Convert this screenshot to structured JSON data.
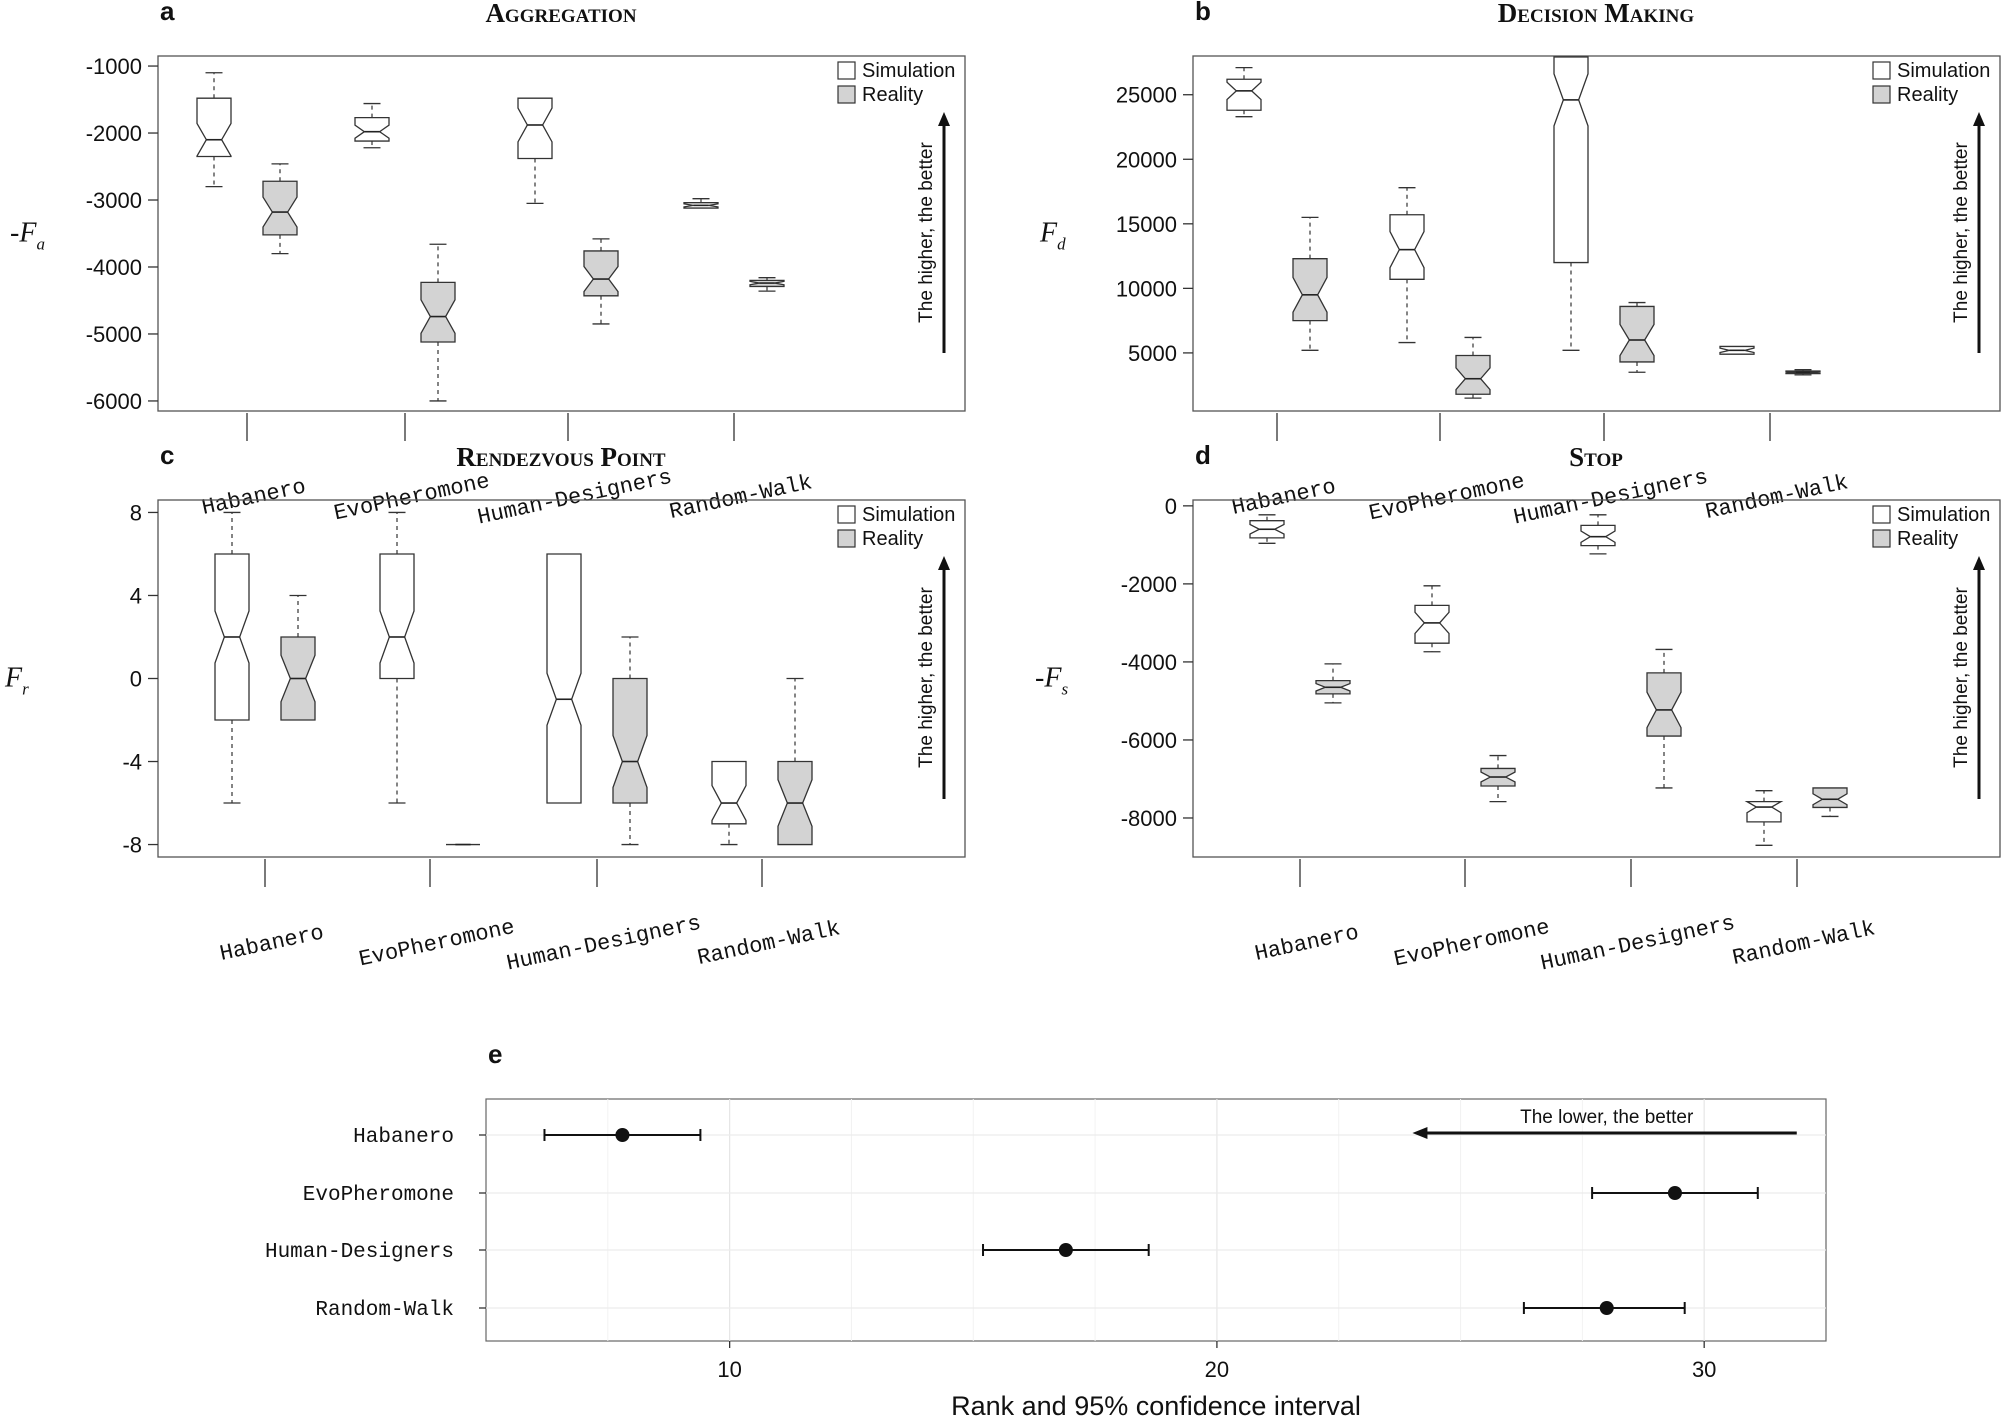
{
  "chart_data": [
    {
      "id": "a",
      "panel_label": "a",
      "type": "boxplot",
      "title": "Aggregation",
      "ylabel_prefix": "-",
      "ylabel_main": "F",
      "ylabel_sub": "a",
      "ylim": [
        -6150,
        -850
      ],
      "yticks": [
        -1000,
        -2000,
        -3000,
        -4000,
        -5000,
        -6000
      ],
      "ytick_labels": [
        "-1000",
        "-2000",
        "-3000",
        "-4000",
        "-5000",
        "-6000"
      ],
      "legend": [
        "Simulation",
        "Reality"
      ],
      "note": "The higher, the better",
      "categories": [
        "Habanero",
        "EvoPheromone",
        "Human-Designers",
        "Random-Walk"
      ],
      "boxes": [
        {
          "category": "Habanero",
          "series": "Simulation",
          "min": -2800,
          "q1": -2350,
          "median": -2100,
          "q3": -1480,
          "max": -1100
        },
        {
          "category": "Habanero",
          "series": "Reality",
          "min": -3800,
          "q1": -3520,
          "median": -3180,
          "q3": -2720,
          "max": -2460
        },
        {
          "category": "EvoPheromone",
          "series": "Simulation",
          "min": -2220,
          "q1": -2120,
          "median": -1980,
          "q3": -1770,
          "max": -1560
        },
        {
          "category": "EvoPheromone",
          "series": "Reality",
          "min": -6000,
          "q1": -5120,
          "median": -4740,
          "q3": -4230,
          "max": -3660
        },
        {
          "category": "Human-Designers",
          "series": "Simulation",
          "min": -3050,
          "q1": -2380,
          "median": -1880,
          "q3": -1480,
          "max": -1480
        },
        {
          "category": "Human-Designers",
          "series": "Reality",
          "min": -4850,
          "q1": -4430,
          "median": -4180,
          "q3": -3760,
          "max": -3580
        },
        {
          "category": "Random-Walk",
          "series": "Simulation",
          "min": -3120,
          "q1": -3120,
          "median": -3080,
          "q3": -3040,
          "max": -2980
        },
        {
          "category": "Random-Walk",
          "series": "Reality",
          "min": -4360,
          "q1": -4290,
          "median": -4240,
          "q3": -4200,
          "max": -4160
        }
      ]
    },
    {
      "id": "b",
      "panel_label": "b",
      "type": "boxplot",
      "title": "Decision Making",
      "ylabel_prefix": "",
      "ylabel_main": "F",
      "ylabel_sub": "d",
      "ylim": [
        500,
        28000
      ],
      "yticks": [
        5000,
        10000,
        15000,
        20000,
        25000
      ],
      "ytick_labels": [
        "5000",
        "10000",
        "15000",
        "20000",
        "25000"
      ],
      "legend": [
        "Simulation",
        "Reality"
      ],
      "note": "The higher, the better",
      "categories": [
        "Habanero",
        "EvoPheromone",
        "Human-Designers",
        "Random-Walk"
      ],
      "boxes": [
        {
          "category": "Habanero",
          "series": "Simulation",
          "min": 23300,
          "q1": 23800,
          "median": 25300,
          "q3": 26200,
          "max": 27100
        },
        {
          "category": "Habanero",
          "series": "Reality",
          "min": 5200,
          "q1": 7500,
          "median": 9500,
          "q3": 12300,
          "max": 15500
        },
        {
          "category": "EvoPheromone",
          "series": "Simulation",
          "min": 5800,
          "q1": 10700,
          "median": 13000,
          "q3": 15700,
          "max": 17800
        },
        {
          "category": "EvoPheromone",
          "series": "Reality",
          "min": 1500,
          "q1": 1800,
          "median": 3000,
          "q3": 4800,
          "max": 6200
        },
        {
          "category": "Human-Designers",
          "series": "Simulation",
          "min": 5200,
          "q1": 12000,
          "median": 24600,
          "q3": 28000,
          "max": 28000
        },
        {
          "category": "Human-Designers",
          "series": "Reality",
          "min": 3500,
          "q1": 4300,
          "median": 6000,
          "q3": 8600,
          "max": 8900
        },
        {
          "category": "Random-Walk",
          "series": "Simulation",
          "min": 4900,
          "q1": 4900,
          "median": 5200,
          "q3": 5500,
          "max": 5500
        },
        {
          "category": "Random-Walk",
          "series": "Reality",
          "min": 3300,
          "q1": 3400,
          "median": 3500,
          "q3": 3600,
          "max": 3700
        }
      ]
    },
    {
      "id": "c",
      "panel_label": "c",
      "type": "boxplot",
      "title": "Rendezvous Point",
      "ylabel_prefix": "",
      "ylabel_main": "F",
      "ylabel_sub": "r",
      "ylim": [
        -8.6,
        8.6
      ],
      "yticks": [
        8,
        4,
        0,
        -4,
        -8
      ],
      "ytick_labels": [
        "8",
        "4",
        "0",
        "-4",
        "-8"
      ],
      "legend": [
        "Simulation",
        "Reality"
      ],
      "note": "The higher, the better",
      "categories": [
        "Habanero",
        "EvoPheromone",
        "Human-Designers",
        "Random-Walk"
      ],
      "boxes": [
        {
          "category": "Habanero",
          "series": "Simulation",
          "min": -6,
          "q1": -2,
          "median": 2,
          "q3": 6,
          "max": 8
        },
        {
          "category": "Habanero",
          "series": "Reality",
          "min": -2,
          "q1": -2,
          "median": 0,
          "q3": 2,
          "max": 4
        },
        {
          "category": "EvoPheromone",
          "series": "Simulation",
          "min": -6,
          "q1": 0,
          "median": 2,
          "q3": 6,
          "max": 8
        },
        {
          "category": "EvoPheromone",
          "series": "Reality",
          "min": -8,
          "q1": -8,
          "median": -8,
          "q3": -8,
          "max": -8
        },
        {
          "category": "Human-Designers",
          "series": "Simulation",
          "min": -6,
          "q1": -6,
          "median": -1,
          "q3": 6,
          "max": 6
        },
        {
          "category": "Human-Designers",
          "series": "Reality",
          "min": -8,
          "q1": -6,
          "median": -4,
          "q3": 0,
          "max": 2
        },
        {
          "category": "Random-Walk",
          "series": "Simulation",
          "min": -8,
          "q1": -7,
          "median": -6,
          "q3": -4,
          "max": -4
        },
        {
          "category": "Random-Walk",
          "series": "Reality",
          "min": -8,
          "q1": -8,
          "median": -6,
          "q3": -4,
          "max": 0
        }
      ]
    },
    {
      "id": "d",
      "panel_label": "d",
      "type": "boxplot",
      "title": "Stop",
      "ylabel_prefix": "-",
      "ylabel_main": "F",
      "ylabel_sub": "s",
      "ylim": [
        -9000,
        150
      ],
      "yticks": [
        0,
        -2000,
        -4000,
        -6000,
        -8000
      ],
      "ytick_labels": [
        "0",
        "-2000",
        "-4000",
        "-6000",
        "-8000"
      ],
      "legend": [
        "Simulation",
        "Reality"
      ],
      "note": "The higher, the better",
      "categories": [
        "Habanero",
        "EvoPheromone",
        "Human-Designers",
        "Random-Walk"
      ],
      "boxes": [
        {
          "category": "Habanero",
          "series": "Simulation",
          "min": -960,
          "q1": -820,
          "median": -600,
          "q3": -380,
          "max": -230
        },
        {
          "category": "Habanero",
          "series": "Reality",
          "min": -5050,
          "q1": -4820,
          "median": -4650,
          "q3": -4480,
          "max": -4050
        },
        {
          "category": "EvoPheromone",
          "series": "Simulation",
          "min": -3740,
          "q1": -3520,
          "median": -3000,
          "q3": -2550,
          "max": -2050
        },
        {
          "category": "EvoPheromone",
          "series": "Reality",
          "min": -7580,
          "q1": -7180,
          "median": -6950,
          "q3": -6730,
          "max": -6400
        },
        {
          "category": "Human-Designers",
          "series": "Simulation",
          "min": -1230,
          "q1": -1020,
          "median": -790,
          "q3": -500,
          "max": -230
        },
        {
          "category": "Human-Designers",
          "series": "Reality",
          "min": -7230,
          "q1": -5900,
          "median": -5230,
          "q3": -4280,
          "max": -3680
        },
        {
          "category": "Random-Walk",
          "series": "Simulation",
          "min": -8700,
          "q1": -8100,
          "median": -7720,
          "q3": -7580,
          "max": -7300
        },
        {
          "category": "Random-Walk",
          "series": "Reality",
          "min": -7960,
          "q1": -7730,
          "median": -7520,
          "q3": -7230,
          "max": -7230
        }
      ]
    },
    {
      "id": "e",
      "panel_label": "e",
      "type": "pointrange",
      "title": "",
      "xlabel": "Rank and 95% confidence interval",
      "xlim": [
        5,
        32.5
      ],
      "xticks": [
        10,
        20,
        30
      ],
      "xtick_labels": [
        "10",
        "20",
        "30"
      ],
      "note": "The lower, the better",
      "categories": [
        "Habanero",
        "EvoPheromone",
        "Human-Designers",
        "Random-Walk"
      ],
      "points": [
        {
          "category": "Habanero",
          "rank": 7.8,
          "lower": 6.2,
          "upper": 9.4
        },
        {
          "category": "EvoPheromone",
          "rank": 29.4,
          "lower": 27.7,
          "upper": 31.1
        },
        {
          "category": "Human-Designers",
          "rank": 16.9,
          "lower": 15.2,
          "upper": 18.6
        },
        {
          "category": "Random-Walk",
          "rank": 28.0,
          "lower": 26.3,
          "upper": 29.6
        }
      ]
    }
  ]
}
